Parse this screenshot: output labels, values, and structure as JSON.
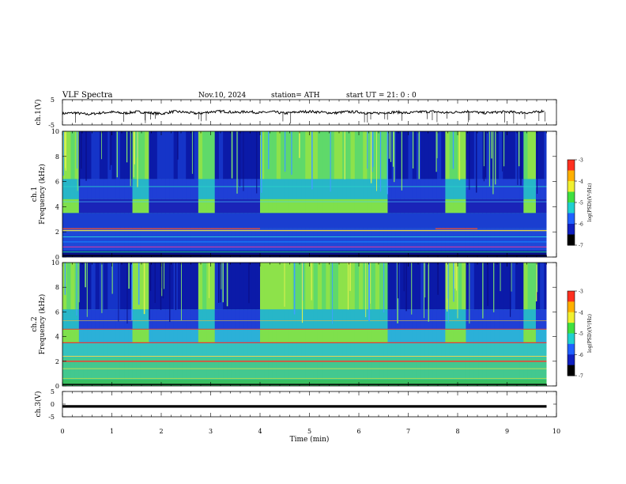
{
  "header": {
    "title": "VLF  Spectra",
    "date": "Nov.10, 2024",
    "station": "station= ATH",
    "start": "start  UT  =    21: 0   : 0"
  },
  "chart_data": [
    {
      "type": "line",
      "name": "ch1_timeseries",
      "ylabel": "ch.1(V)",
      "ylim": [
        -5,
        5
      ],
      "yticks": [
        "5",
        "-5"
      ],
      "xlim": [
        0,
        10
      ],
      "x": [
        0.0,
        0.25,
        0.5,
        0.75,
        1.0,
        1.25,
        1.5,
        1.75,
        2.0,
        2.25,
        2.5,
        2.75,
        3.0,
        3.25,
        3.5,
        3.75,
        4.0,
        4.25,
        4.5,
        4.75,
        5.0,
        5.25,
        5.5,
        5.75,
        6.0,
        6.25,
        6.5,
        6.75,
        7.0,
        7.25,
        7.5,
        7.75,
        8.0,
        8.25,
        8.5,
        8.75,
        9.0,
        9.25,
        9.5,
        9.75
      ],
      "y": [
        -0.5,
        -0.2,
        -0.8,
        -0.3,
        0.1,
        -0.4,
        0.2,
        -0.2,
        -0.6,
        0.3,
        0.0,
        -0.5,
        0.2,
        0.4,
        -0.1,
        0.3,
        -0.2,
        0.2,
        -0.4,
        0.1,
        0.3,
        0.0,
        -0.3,
        0.2,
        0.1,
        -0.5,
        -0.2,
        0.1,
        -0.3,
        0.2,
        0.3,
        -0.2,
        0.1,
        0.4,
        -0.3,
        0.0,
        0.2,
        -0.1,
        -0.2,
        0.6
      ]
    },
    {
      "type": "heatmap",
      "name": "ch1_spectrogram",
      "ylabel": "ch.1\nFrequency (kHz)",
      "ylim": [
        0,
        10
      ],
      "yticks": [
        "0",
        "2",
        "4",
        "6",
        "8",
        "10"
      ],
      "xlim": [
        0,
        10
      ],
      "colorbar": {
        "label": "log(PSD)(V²/Hz)",
        "range": [
          -7,
          -3
        ],
        "ticks": [
          "-3",
          "-4",
          "-5",
          "-6",
          "-7"
        ]
      },
      "quiet_intervals_min": [
        [
          0.3,
          1.4
        ],
        [
          1.75,
          2.75
        ],
        [
          3.1,
          4.0
        ],
        [
          6.6,
          7.75
        ],
        [
          8.15,
          9.3
        ],
        [
          9.6,
          9.8
        ]
      ]
    },
    {
      "type": "heatmap",
      "name": "ch2_spectrogram",
      "ylabel": "ch.2\nFrequency (kHz)",
      "ylim": [
        0,
        10
      ],
      "yticks": [
        "0",
        "2",
        "4",
        "6",
        "8",
        "10"
      ],
      "xlim": [
        0,
        10
      ],
      "colorbar": {
        "label": "log(PSD)(V²/Hz)",
        "range": [
          -7,
          -3
        ],
        "ticks": [
          "-3",
          "-4",
          "-5",
          "-6",
          "-7"
        ]
      },
      "quiet_intervals_min": [
        [
          0.3,
          1.4
        ],
        [
          1.75,
          2.75
        ],
        [
          3.1,
          4.0
        ],
        [
          6.6,
          7.75
        ],
        [
          8.15,
          9.3
        ],
        [
          9.6,
          9.8
        ]
      ]
    },
    {
      "type": "line",
      "name": "ch3_timeseries",
      "ylabel": "ch.3(V)",
      "ylim": [
        -5,
        5
      ],
      "yticks": [
        "5",
        "0",
        "-5"
      ],
      "xlim": [
        0,
        10
      ],
      "x": [
        0,
        9.8
      ],
      "y": [
        -0.9,
        -0.9
      ]
    }
  ],
  "xaxis": {
    "label": "Time (min)",
    "ticks": [
      "0",
      "1",
      "2",
      "3",
      "4",
      "5",
      "6",
      "7",
      "8",
      "9",
      "10"
    ]
  },
  "colors": {
    "quiet": "#1a2fd0",
    "active": "#33d06a",
    "line": "#e33b3b"
  }
}
